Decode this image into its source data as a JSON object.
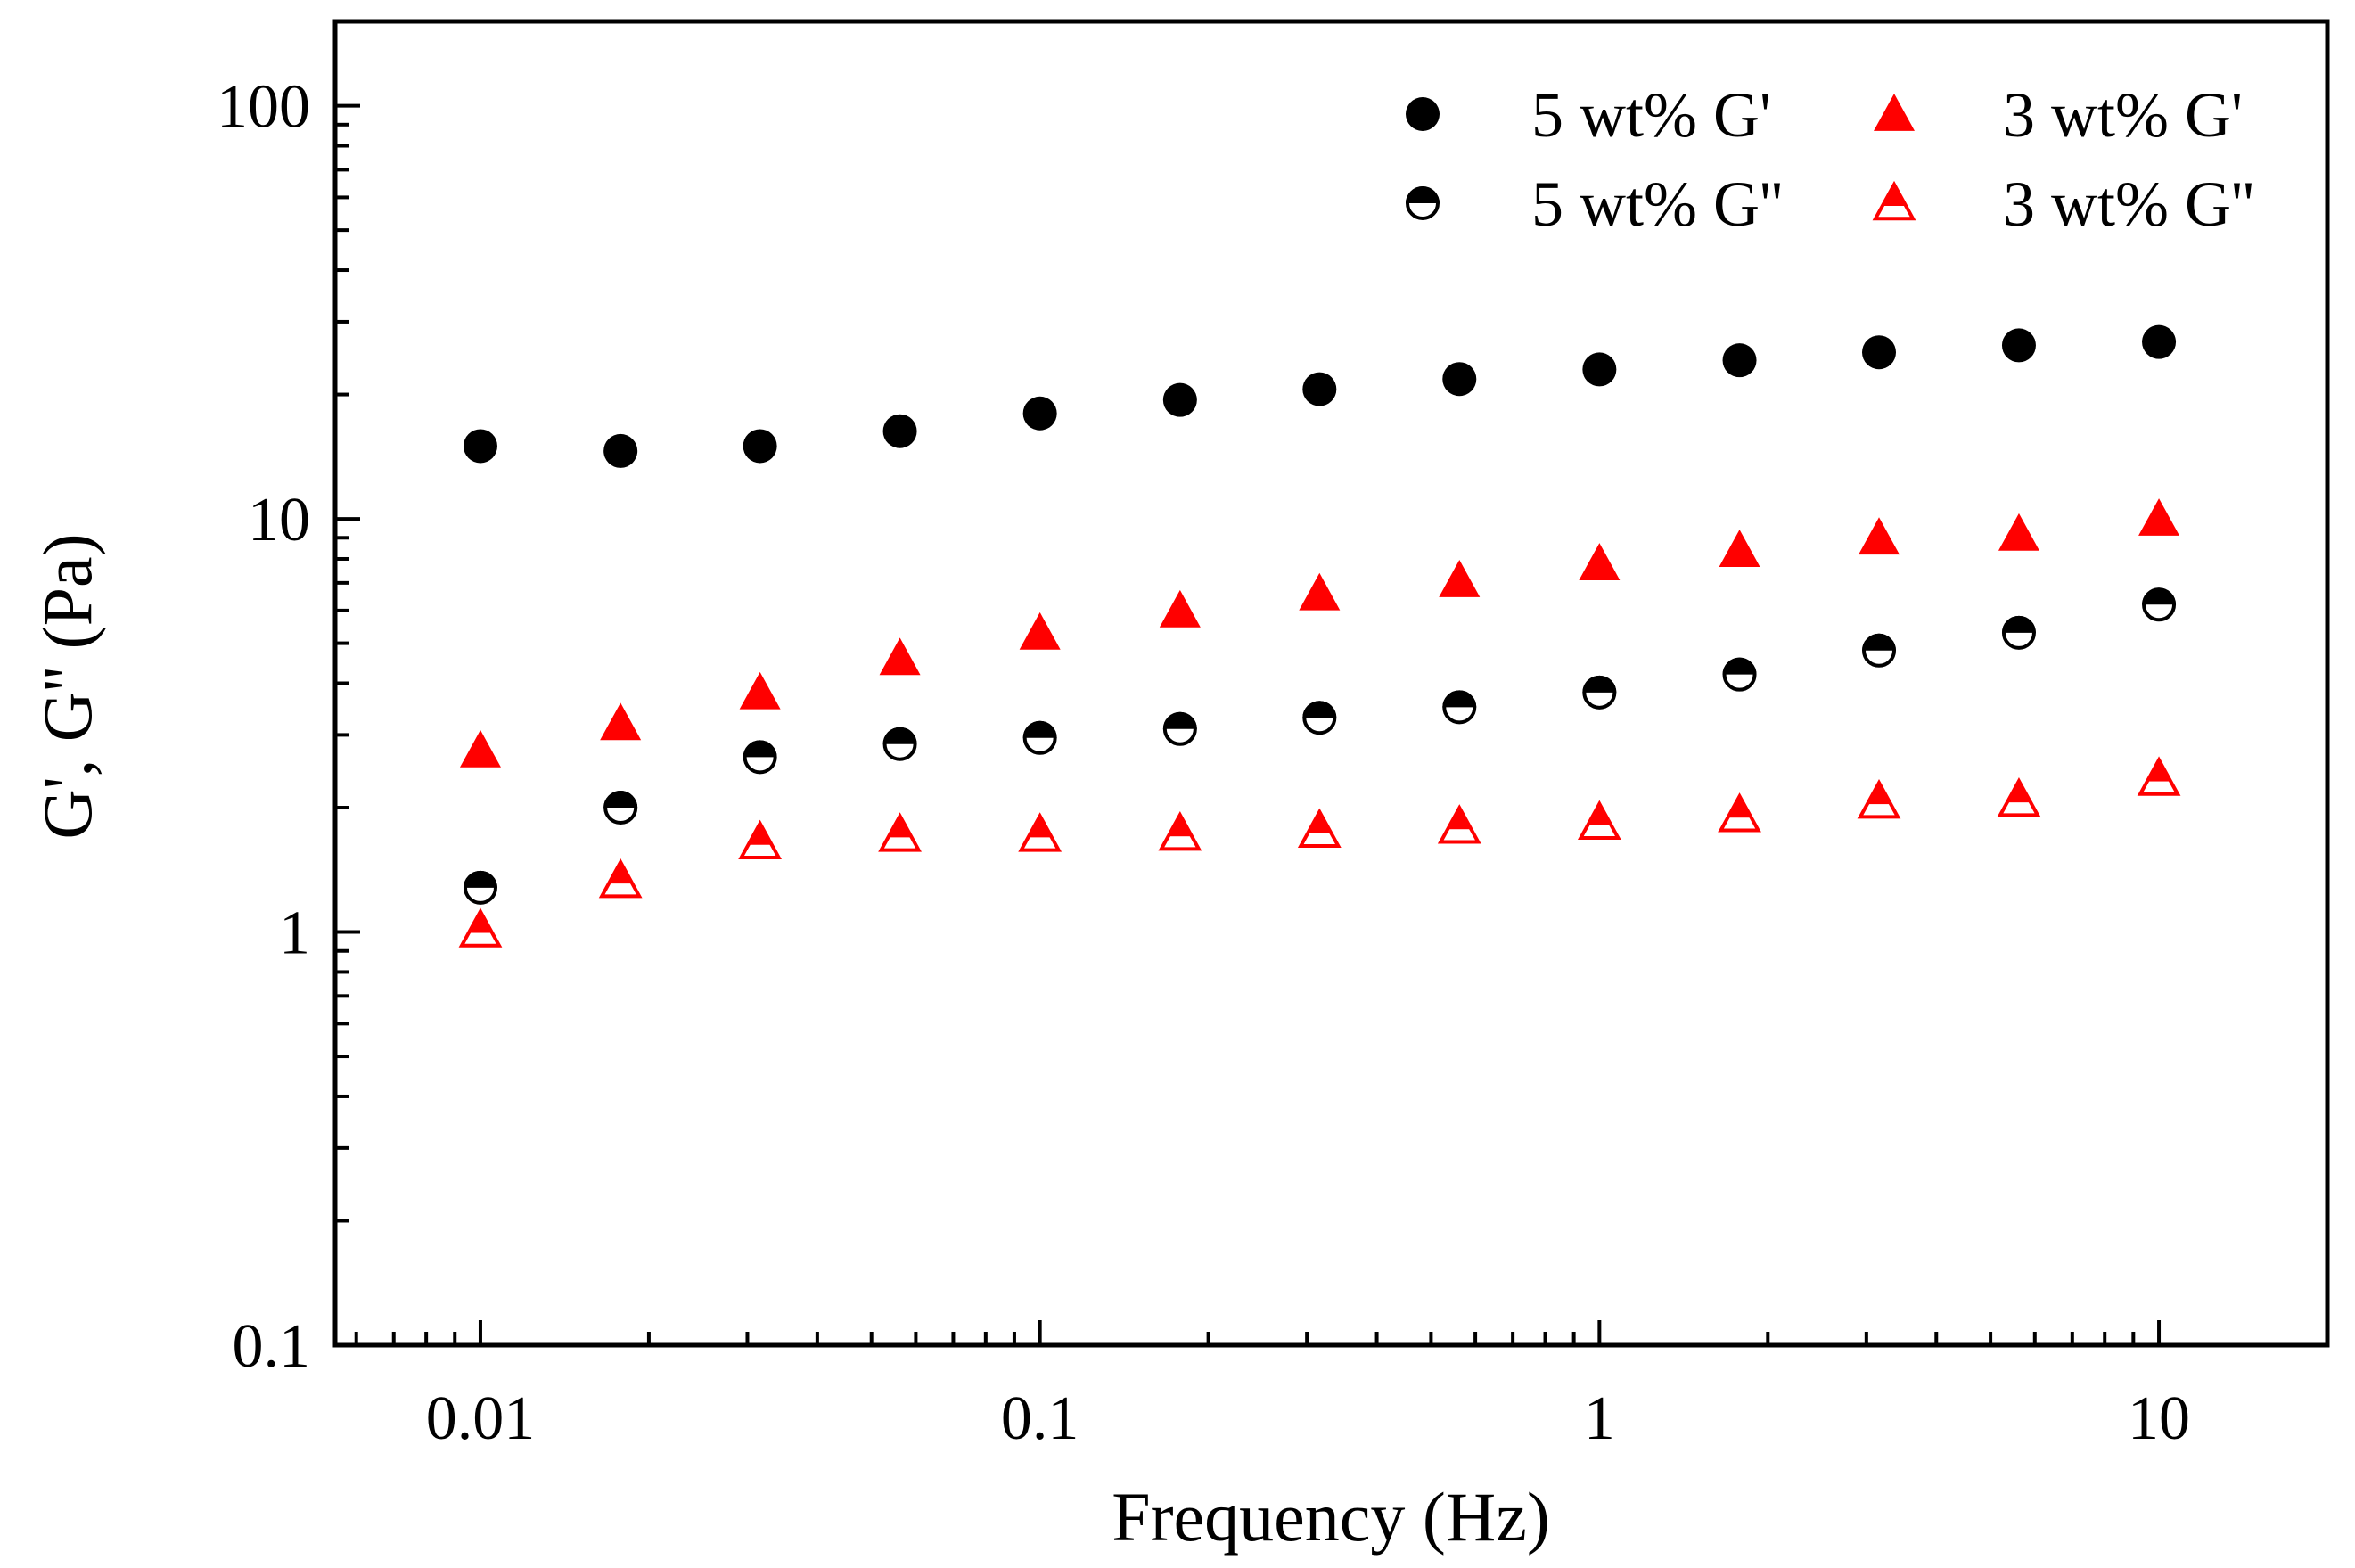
{
  "chart_data": {
    "type": "scatter",
    "title": "",
    "xlabel": "Frequency (Hz)",
    "ylabel": "G', G'' (Pa)",
    "xscale": "log",
    "yscale": "log",
    "xlim": [
      0.0055,
      20
    ],
    "ylim": [
      0.1,
      160
    ],
    "x_ticks": [
      {
        "value": 0.01,
        "label": "0.01"
      },
      {
        "value": 0.1,
        "label": "0.1"
      },
      {
        "value": 1,
        "label": "1"
      },
      {
        "value": 10,
        "label": "10"
      }
    ],
    "y_ticks": [
      {
        "value": 0.1,
        "label": "0.1"
      },
      {
        "value": 1,
        "label": "1"
      },
      {
        "value": 10,
        "label": "10"
      },
      {
        "value": 100,
        "label": "100"
      }
    ],
    "grid": false,
    "legend_position": "top-right",
    "x": [
      0.01,
      0.0178,
      0.0316,
      0.0562,
      0.1,
      0.178,
      0.316,
      0.562,
      1,
      1.78,
      3.16,
      5.62,
      10
    ],
    "series": [
      {
        "name": "5 wt% G'",
        "marker": "circle-filled",
        "color": "#000000",
        "values": [
          15.0,
          14.6,
          15.0,
          16.3,
          18.0,
          19.4,
          20.6,
          21.8,
          23.0,
          24.2,
          25.3,
          26.3,
          26.8
        ]
      },
      {
        "name": "5 wt% G''",
        "marker": "circle-half",
        "color": "#000000",
        "values": [
          1.28,
          2.0,
          2.65,
          2.85,
          2.95,
          3.1,
          3.3,
          3.5,
          3.8,
          4.2,
          4.8,
          5.3,
          6.2
        ]
      },
      {
        "name": "3 wt% G'",
        "marker": "triangle-filled",
        "color": "#ff0000",
        "values": [
          2.75,
          3.2,
          3.8,
          4.6,
          5.3,
          6.0,
          6.6,
          7.1,
          7.8,
          8.4,
          9.0,
          9.2,
          10.0
        ]
      },
      {
        "name": "3 wt% G''",
        "marker": "triangle-half",
        "color": "#ff0000",
        "values": [
          1.01,
          1.33,
          1.65,
          1.72,
          1.72,
          1.73,
          1.76,
          1.8,
          1.84,
          1.92,
          2.07,
          2.09,
          2.35
        ]
      }
    ]
  }
}
